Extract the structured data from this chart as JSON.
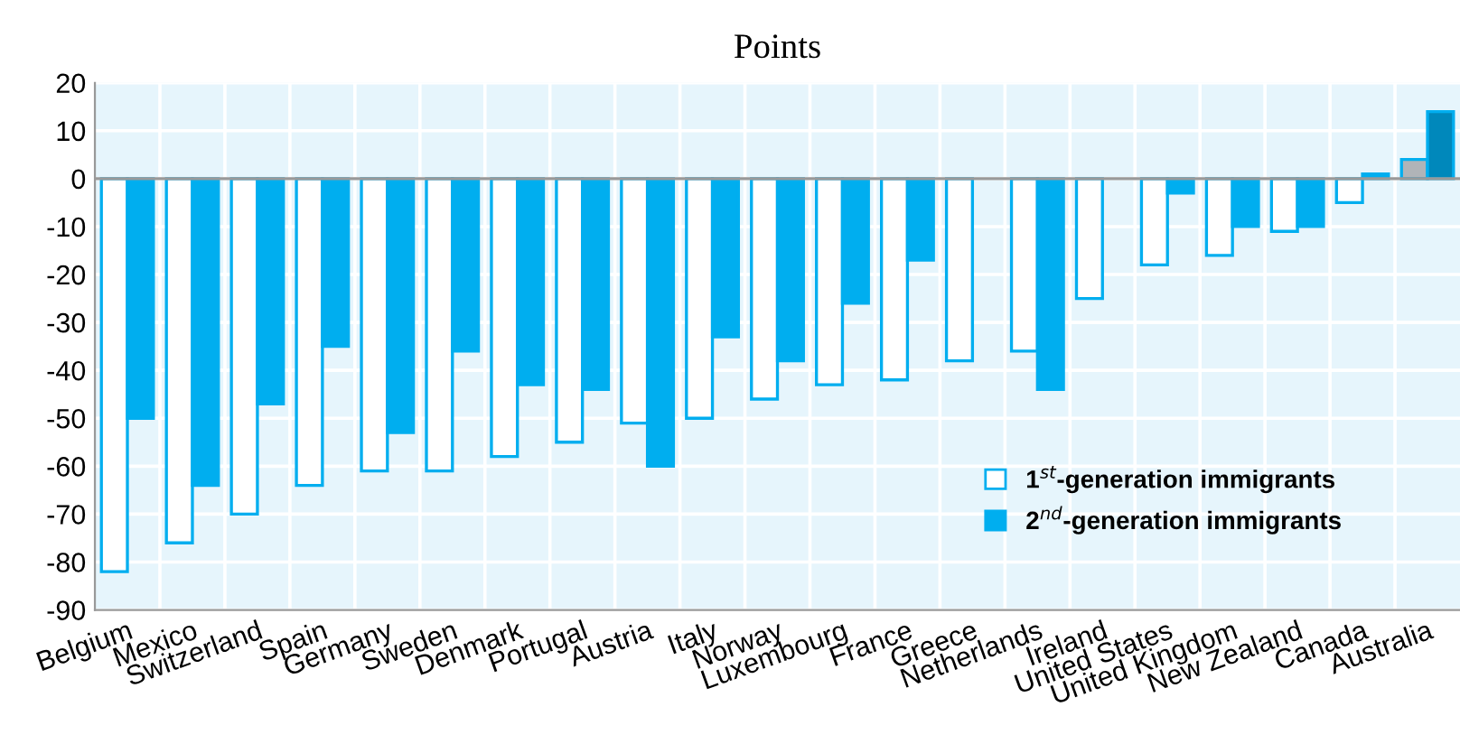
{
  "chart_data": {
    "type": "bar",
    "title": "Points",
    "categories": [
      "Belgium",
      "Mexico",
      "Switzerland",
      "Spain",
      "Germany",
      "Sweden",
      "Denmark",
      "Portugal",
      "Austria",
      "Italy",
      "Norway",
      "Luxembourg",
      "France",
      "Greece",
      "Netherlands",
      "Ireland",
      "United States",
      "United Kingdom",
      "New Zealand",
      "Canada",
      "Australia"
    ],
    "series": [
      {
        "name": "1$^{st}$-generation immigrants",
        "color": "#00aeef",
        "colors": [
          "#ffffff",
          "#ffffff",
          "#ffffff",
          "#ffffff",
          "#ffffff",
          "#ffffff",
          "#ffffff",
          "#ffffff",
          "#ffffff",
          "#ffffff",
          "#ffffff",
          "#ffffff",
          "#ffffff",
          "#ffffff",
          "#ffffff",
          "#ffffff",
          "#ffffff",
          "#ffffff",
          "#ffffff",
          "#ffffff",
          "#b0b4b8"
        ],
        "values": [
          -82,
          -76,
          -70,
          -64,
          -61,
          -61,
          -58,
          -55,
          -51,
          -50,
          -46,
          -43,
          -42,
          -38,
          -36,
          -25,
          -18,
          -16,
          -11,
          -5,
          4
        ]
      },
      {
        "name": "2$^{nd}$-generation immigrants",
        "color": "#00aeef",
        "colors": [
          "#00aeef",
          "#00aeef",
          "#00aeef",
          "#00aeef",
          "#00aeef",
          "#00aeef",
          "#00aeef",
          "#00aeef",
          "#00aeef",
          "#00aeef",
          "#00aeef",
          "#00aeef",
          "#00aeef",
          "#00aeef",
          "#00aeef",
          "#00aeef",
          "#00aeef",
          "#00aeef",
          "#00aeef",
          "#00aeef",
          "#0088bb"
        ],
        "values": [
          -50,
          -64,
          -47,
          -35,
          -53,
          -36,
          -43,
          -44,
          -60,
          -33,
          -38,
          -26,
          -17,
          null,
          -44,
          null,
          -3,
          -10,
          -10,
          1,
          14
        ]
      }
    ],
    "ylim": [
      -90,
      20
    ],
    "yticks": [
      -90,
      -80,
      -70,
      -60,
      -50,
      -40,
      -30,
      -20,
      -10,
      0,
      10,
      20
    ],
    "grid": true,
    "legend": "bottom right"
  }
}
